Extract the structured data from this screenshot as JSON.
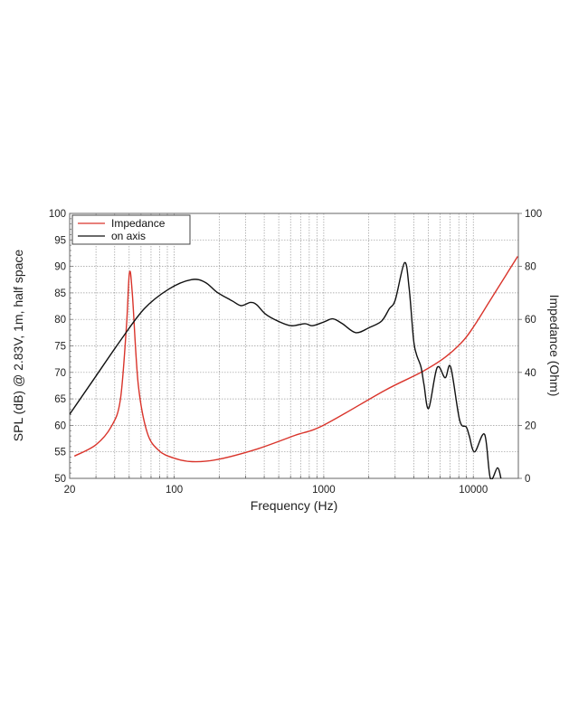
{
  "chart_data": {
    "type": "line",
    "xlabel": "Frequency (Hz)",
    "ylabel": "SPL (dB) @ 2.83V, 1m, half space",
    "y2label": "Impedance (Ohm)",
    "xscale": "log",
    "xlim": [
      20,
      20000
    ],
    "ylim": [
      50,
      100
    ],
    "y2lim": [
      0,
      100
    ],
    "xticks": [
      "20",
      "100",
      "1000",
      "10000"
    ],
    "xtick_values": [
      20,
      100,
      1000,
      10000
    ],
    "yticks": [
      "50",
      "55",
      "60",
      "65",
      "70",
      "75",
      "80",
      "85",
      "90",
      "95",
      "100"
    ],
    "y2ticks": [
      "0",
      "20",
      "40",
      "60",
      "80",
      "100"
    ],
    "grid": true,
    "legend_placement": "top-left",
    "series": [
      {
        "name": "Impedance",
        "axis": "right",
        "color": "#d9342b",
        "x": [
          21.5,
          30,
          38,
          43.7,
          48,
          50.2,
          52.5,
          57.5,
          66,
          79,
          100,
          132,
          194,
          355,
          640,
          1000,
          2560,
          4470,
          6480,
          8580,
          10300,
          13000,
          16400,
          19800
        ],
        "y": [
          8.4,
          12.7,
          19.6,
          29.8,
          58,
          77.6,
          69.6,
          35.5,
          17.3,
          10.5,
          7.6,
          6.3,
          7.1,
          11,
          16.2,
          20.1,
          33.2,
          40,
          45.7,
          52,
          58.2,
          67.3,
          76.4,
          83.8
        ]
      },
      {
        "name": "on axis",
        "axis": "left",
        "color": "#111111",
        "x": [
          20,
          27.4,
          43.7,
          63,
          91.8,
          130,
          161,
          194,
          244,
          281,
          323,
          355,
          408,
          492,
          605,
          747,
          838,
          1000,
          1150,
          1330,
          1640,
          2030,
          2440,
          2740,
          3010,
          3470,
          3720,
          3980,
          4170,
          4470,
          4680,
          5030,
          5730,
          6480,
          7060,
          8100,
          8970,
          9400,
          10200,
          11900,
          13000,
          14500,
          15300
        ],
        "y": [
          62.1,
          67.7,
          76,
          82,
          85.7,
          87.5,
          87,
          85.1,
          83.5,
          82.6,
          83.2,
          82.8,
          81,
          79.7,
          78.8,
          79.2,
          78.8,
          79.5,
          80.1,
          79.2,
          77.5,
          78.5,
          79.7,
          82,
          83.7,
          90.7,
          86,
          76.3,
          73.4,
          71,
          67.7,
          63.2,
          70.9,
          69,
          71,
          61,
          59.7,
          58,
          55,
          58.3,
          50,
          52,
          50
        ]
      }
    ]
  }
}
